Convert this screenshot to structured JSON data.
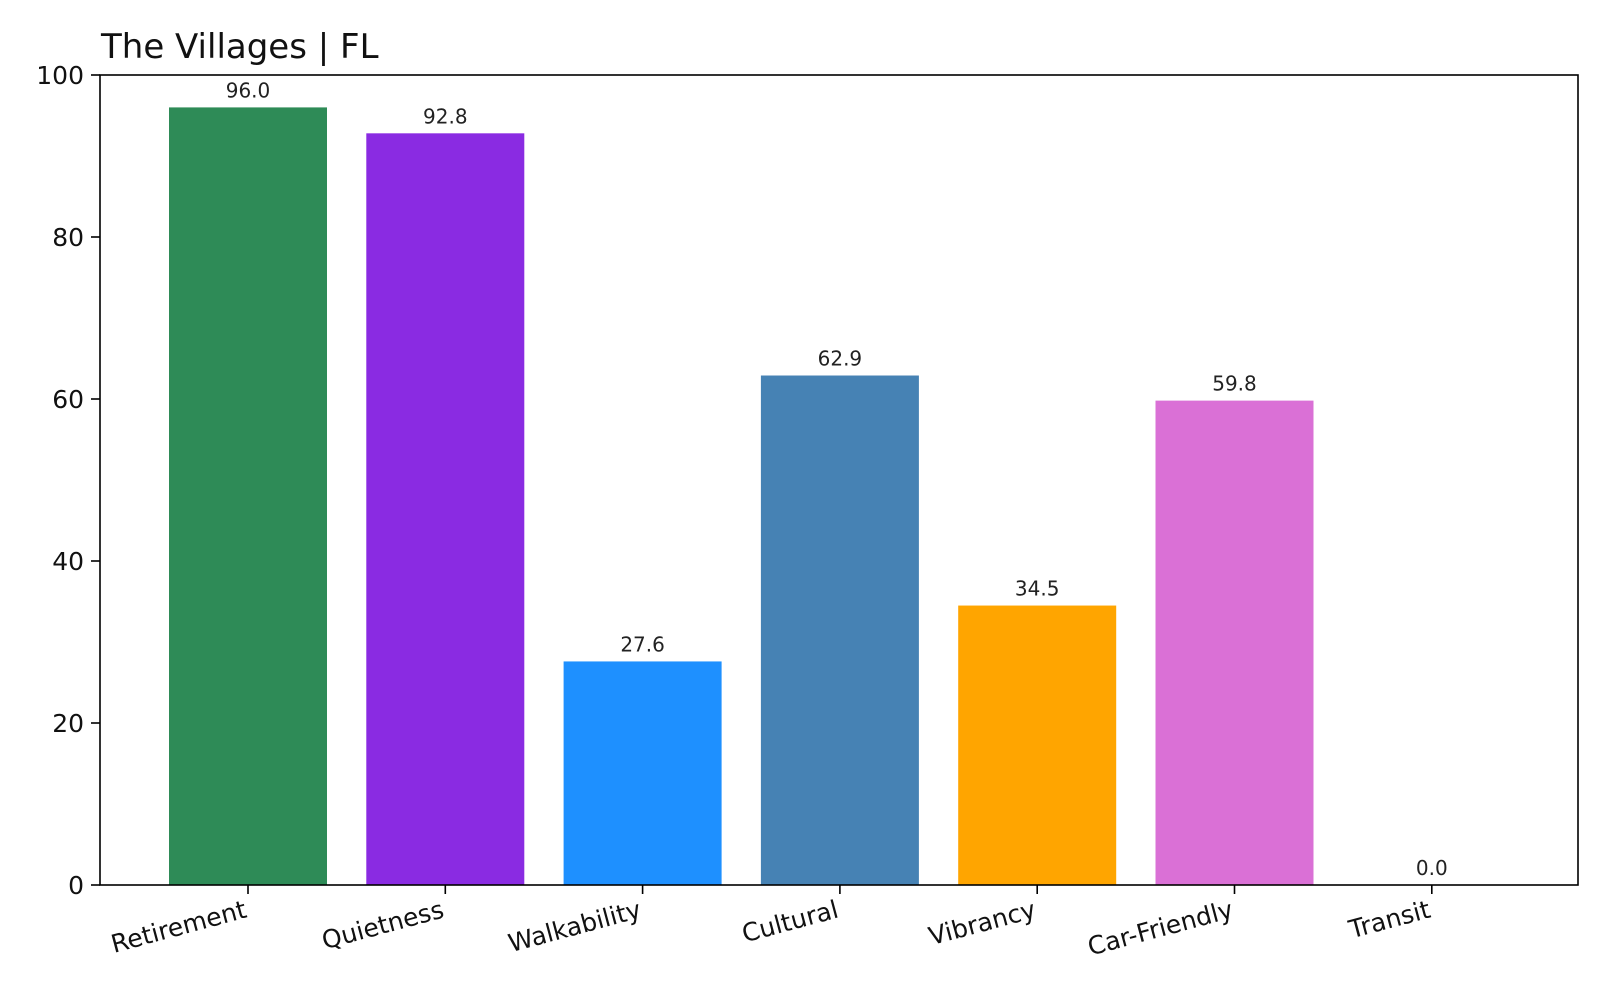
{
  "chart_data": {
    "type": "bar",
    "title": "The Villages | FL",
    "xlabel": "",
    "ylabel": "",
    "ylim": [
      0,
      100
    ],
    "yticks": [
      0,
      20,
      40,
      60,
      80,
      100
    ],
    "ytick_labels": [
      "0",
      "20",
      "40",
      "60",
      "80",
      "100"
    ],
    "grid": false,
    "categories": [
      "Retirement",
      "Quietness",
      "Walkability",
      "Cultural",
      "Vibrancy",
      "Car-Friendly",
      "Transit"
    ],
    "values": [
      96.0,
      92.8,
      27.6,
      62.9,
      34.5,
      59.8,
      0.0
    ],
    "value_labels": [
      "96.0",
      "92.8",
      "27.6",
      "62.9",
      "34.5",
      "59.8",
      "0.0"
    ],
    "colors": [
      "#2e8b57",
      "#8a2be2",
      "#1e90ff",
      "#4682b4",
      "#ffa500",
      "#da70d6",
      "#808080"
    ]
  }
}
